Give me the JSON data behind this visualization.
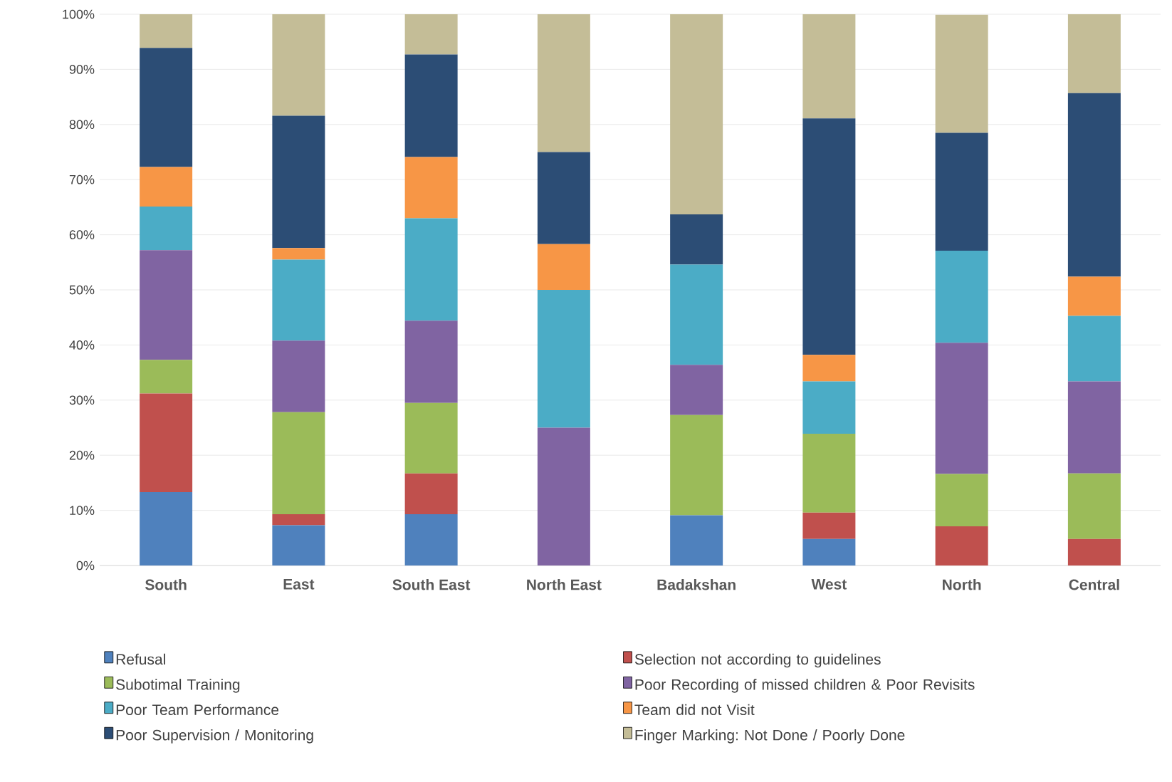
{
  "chart_data": {
    "type": "bar",
    "stacked": true,
    "categories": [
      "South",
      "East",
      "South East",
      "North East",
      "Badakshan",
      "West",
      "North",
      "Central"
    ],
    "series": [
      {
        "name": "Refusal",
        "color": "#4f81bd",
        "values": [
          13.3,
          7.3,
          9.3,
          0,
          9.1,
          4.8,
          0,
          0
        ]
      },
      {
        "name": "Selection not according to guidelines",
        "color": "#c0504d",
        "values": [
          17.9,
          2.0,
          7.4,
          0,
          0,
          4.8,
          7.1,
          4.8
        ]
      },
      {
        "name": "Subotimal Training",
        "color": "#9bbb59",
        "values": [
          6.1,
          18.5,
          12.8,
          0,
          18.2,
          14.3,
          9.5,
          11.9
        ]
      },
      {
        "name": "Poor Recording of missed children & Poor Revisits",
        "color": "#8064a2",
        "values": [
          19.9,
          13.0,
          14.9,
          25,
          9.1,
          0,
          23.8,
          16.7
        ]
      },
      {
        "name": "Poor Team Performance",
        "color": "#4bacc6",
        "values": [
          7.9,
          14.7,
          18.6,
          25,
          18.2,
          9.5,
          16.7,
          11.9
        ]
      },
      {
        "name": "Team did not Visit",
        "color": "#f79646",
        "values": [
          7.2,
          2.1,
          11.1,
          8.3,
          0,
          4.8,
          0,
          7.1
        ]
      },
      {
        "name": "Poor Supervision / Monitoring",
        "color": "#2c4d75",
        "values": [
          21.6,
          24.0,
          18.6,
          16.7,
          9.1,
          42.9,
          21.4,
          33.3
        ]
      },
      {
        "name": "Finger Marking: Not Done / Poorly Done",
        "color": "#c4bd97",
        "values": [
          6.1,
          18.4,
          7.3,
          25,
          36.4,
          19.0,
          21.4,
          14.3
        ]
      }
    ],
    "ylim": [
      0,
      100
    ],
    "yticks": [
      {
        "value": 0,
        "label": "0%"
      },
      {
        "value": 10,
        "label": "10%"
      },
      {
        "value": 20,
        "label": "20%"
      },
      {
        "value": 30,
        "label": "30%"
      },
      {
        "value": 40,
        "label": "40%"
      },
      {
        "value": 50,
        "label": "50%"
      },
      {
        "value": 60,
        "label": "60%"
      },
      {
        "value": 70,
        "label": "70%"
      },
      {
        "value": 80,
        "label": "80%"
      },
      {
        "value": 90,
        "label": "90%"
      },
      {
        "value": 100,
        "label": "100%"
      }
    ],
    "grid": "y",
    "legend": "bottom"
  }
}
